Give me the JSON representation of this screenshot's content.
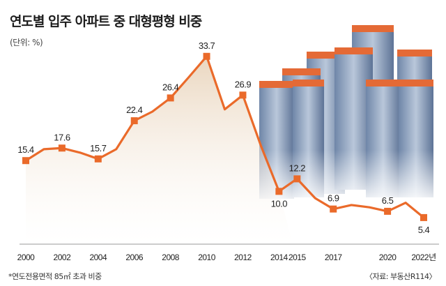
{
  "title": "연도별 입주 아파트 중 대형평형 비중",
  "unit_label": "(단위: %)",
  "footnote": "*연도전용면적 85㎡ 초과 비중",
  "source": "〈자료: 부동산R114〉",
  "colors": {
    "line": "#ea6a2a",
    "marker": "#ea6a2a",
    "area_top": "#e8d2b8",
    "area_bottom": "#ffffff",
    "axis": "#999999",
    "building_roof": "#e46a36",
    "building_wall": "#8aa0bd"
  },
  "chart_data": {
    "type": "line",
    "title": "연도별 입주 아파트 중 대형평형 비중",
    "ylabel": "(단위: %)",
    "xlabel": "",
    "ylim": [
      0,
      36
    ],
    "grid": false,
    "legend": "none",
    "x_tick_labels": [
      "2000",
      "2002",
      "2004",
      "2006",
      "2008",
      "2010",
      "2012",
      "2014",
      "2015",
      "2017",
      "2020",
      "2022년"
    ],
    "series": [
      {
        "points": [
          {
            "x": 2000,
            "y": 15.4,
            "label": "15.4",
            "marker": true
          },
          {
            "x": 2001,
            "y": 17.4,
            "label": "",
            "marker": false
          },
          {
            "x": 2002,
            "y": 17.6,
            "label": "17.6",
            "marker": true
          },
          {
            "x": 2003,
            "y": 16.8,
            "label": "",
            "marker": false
          },
          {
            "x": 2004,
            "y": 15.7,
            "label": "15.7",
            "marker": true
          },
          {
            "x": 2005,
            "y": 17.4,
            "label": "",
            "marker": false
          },
          {
            "x": 2006,
            "y": 22.4,
            "label": "22.4",
            "marker": true
          },
          {
            "x": 2007,
            "y": 24.0,
            "label": "",
            "marker": false
          },
          {
            "x": 2008,
            "y": 26.4,
            "label": "26.4",
            "marker": true
          },
          {
            "x": 2009,
            "y": 30.0,
            "label": "",
            "marker": false
          },
          {
            "x": 2010,
            "y": 33.7,
            "label": "33.7",
            "marker": true
          },
          {
            "x": 2011,
            "y": 24.4,
            "label": "",
            "marker": false
          },
          {
            "x": 2012,
            "y": 26.9,
            "label": "26.9",
            "marker": true
          },
          {
            "x": 2013,
            "y": 18.0,
            "label": "",
            "marker": false
          },
          {
            "x": 2014,
            "y": 10.0,
            "label": "10.0",
            "marker": true
          },
          {
            "x": 2015,
            "y": 12.2,
            "label": "12.2",
            "marker": true
          },
          {
            "x": 2016,
            "y": 8.8,
            "label": "",
            "marker": false
          },
          {
            "x": 2017,
            "y": 6.9,
            "label": "6.9",
            "marker": true
          },
          {
            "x": 2018,
            "y": 7.6,
            "label": "",
            "marker": false
          },
          {
            "x": 2019,
            "y": 7.2,
            "label": "",
            "marker": false
          },
          {
            "x": 2020,
            "y": 6.5,
            "label": "6.5",
            "marker": true
          },
          {
            "x": 2021,
            "y": 8.0,
            "label": "",
            "marker": false
          },
          {
            "x": 2022,
            "y": 5.4,
            "label": "5.4",
            "marker": true
          }
        ]
      }
    ]
  }
}
